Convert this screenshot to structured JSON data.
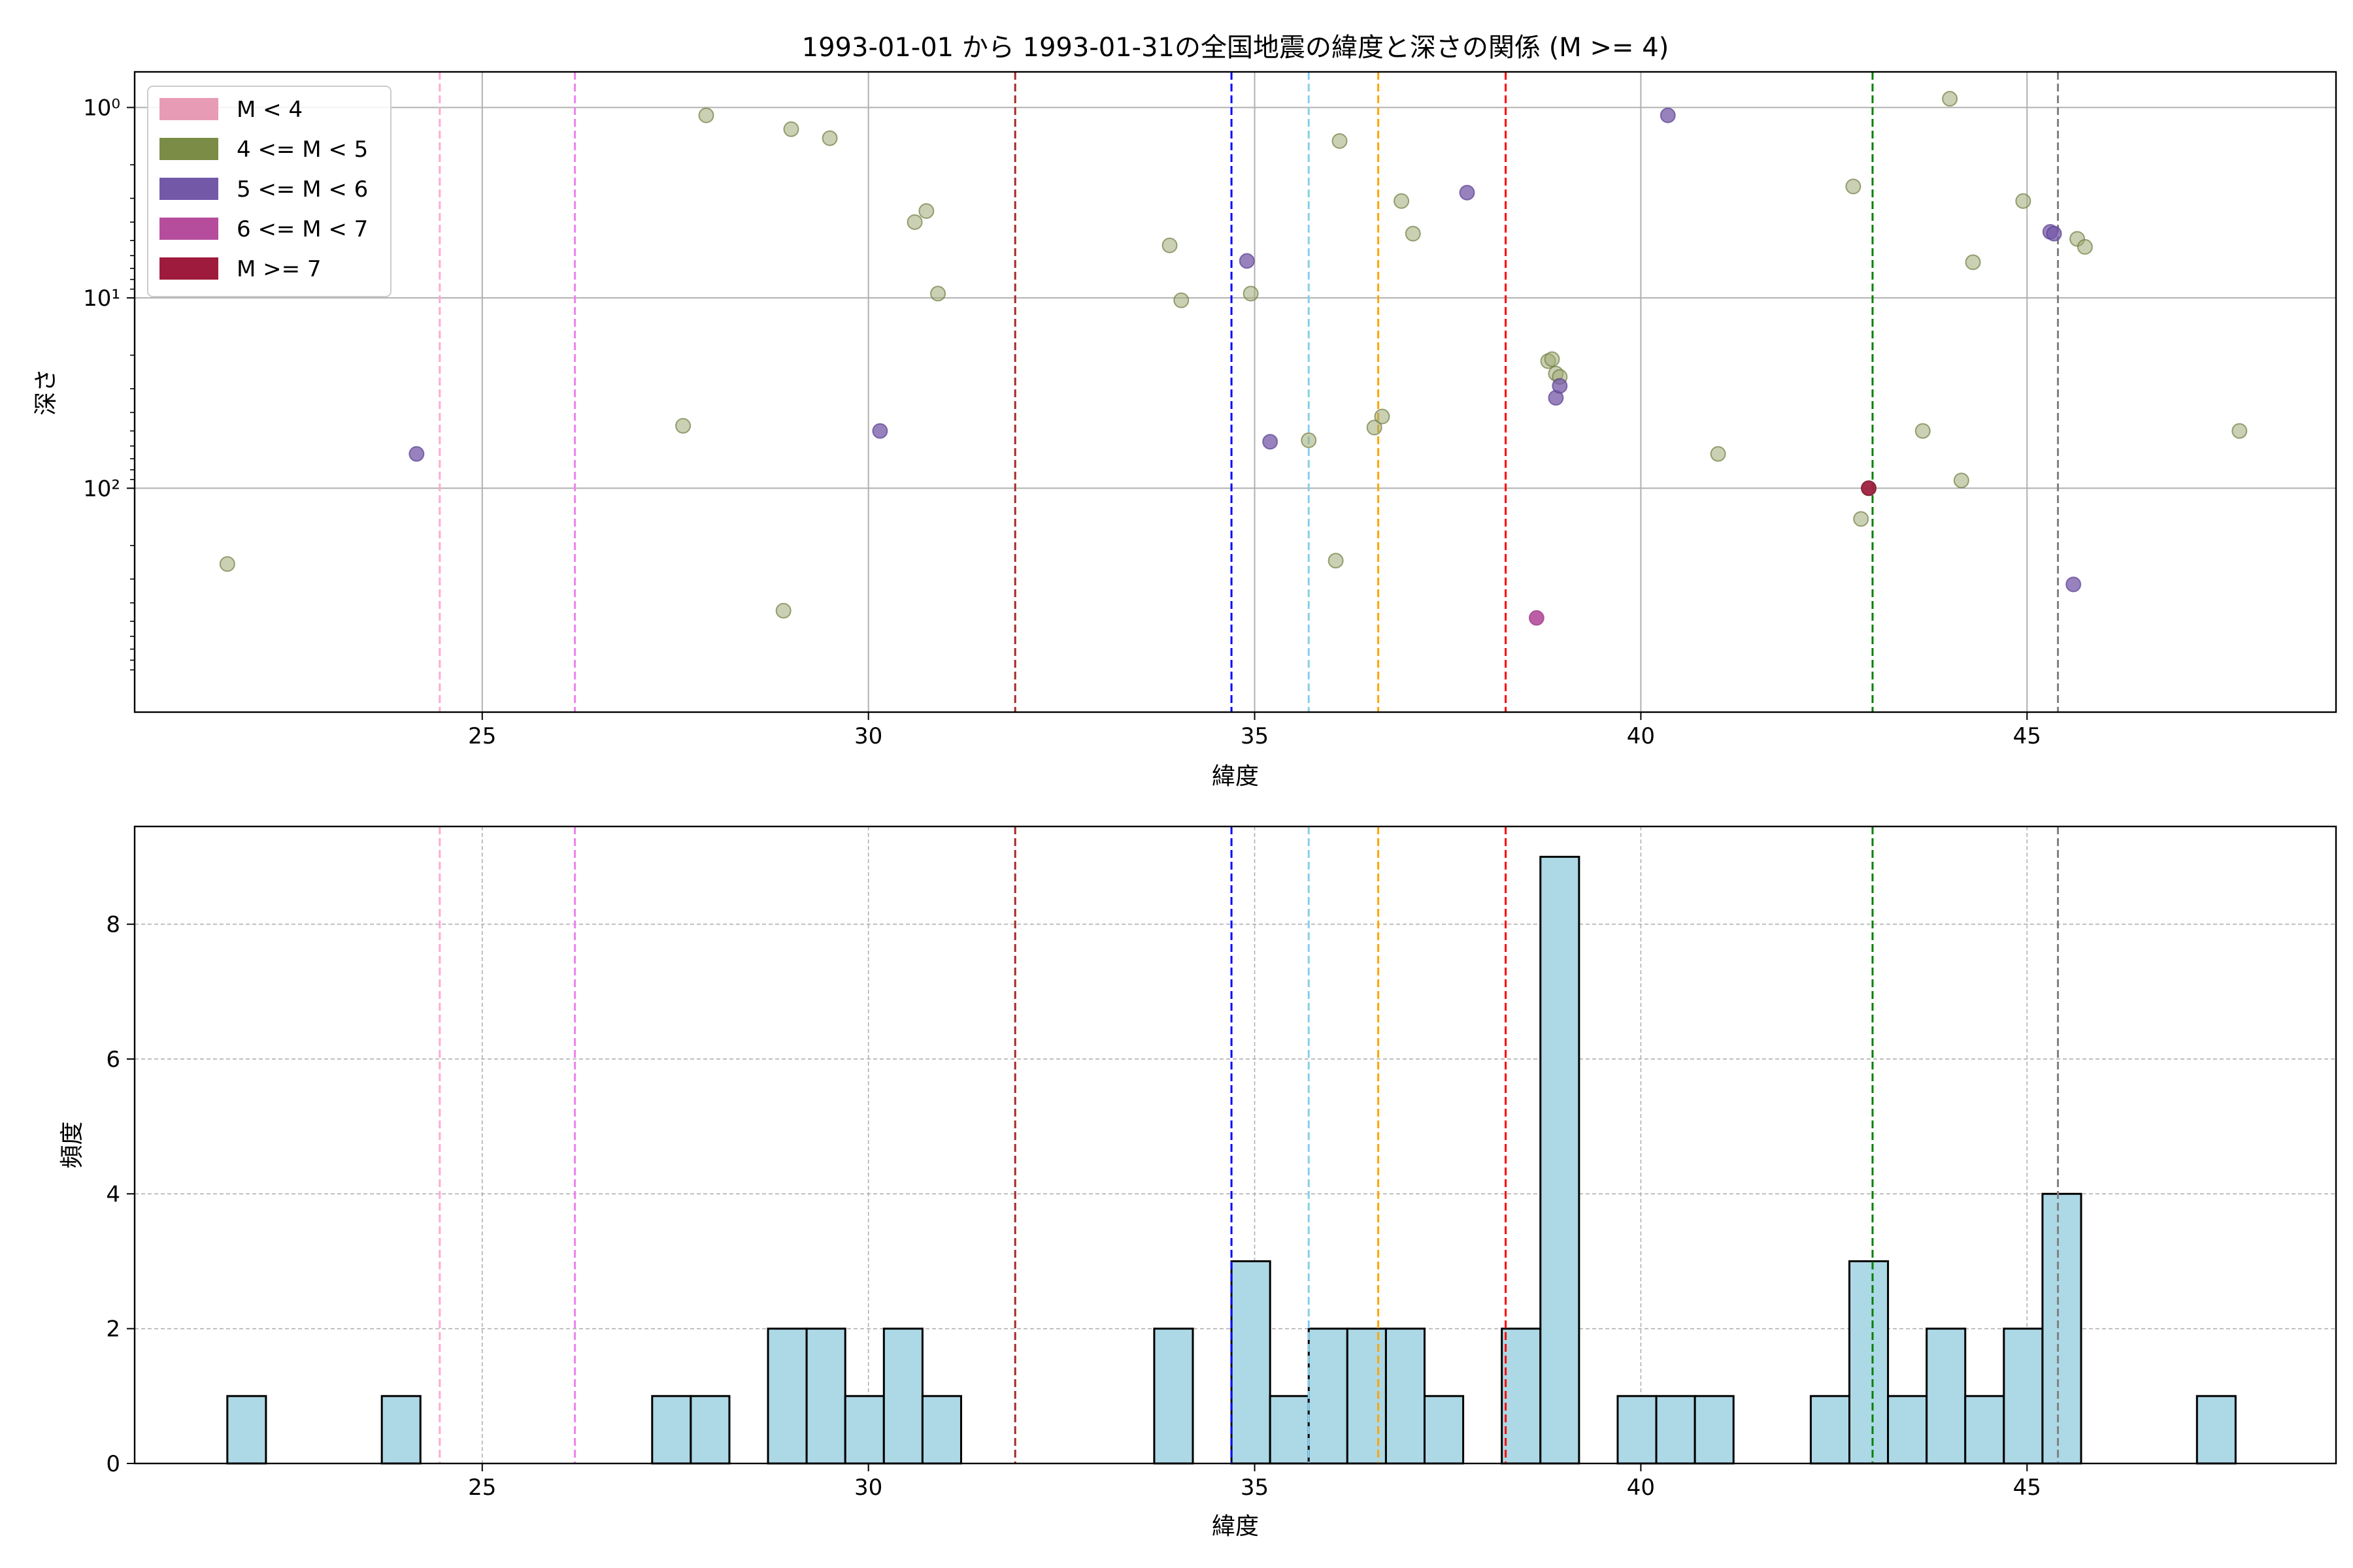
{
  "title": "1993-01-01 から 1993-01-31の全国地震の緯度と深さの関係 (M >= 4)",
  "chart_data": [
    {
      "type": "scatter",
      "xlabel": "緯度",
      "ylabel": "深さ",
      "xlim": [
        20.5,
        49.0
      ],
      "ylim": [
        1500,
        0.65
      ],
      "yscale": "log",
      "y_inverted": true,
      "xticks": [
        25,
        30,
        35,
        40,
        45
      ],
      "xtick_labels": [
        "25",
        "30",
        "35",
        "40",
        "45"
      ],
      "yticks": [
        1,
        10,
        100
      ],
      "ytick_labels": [
        "10⁰",
        "10¹",
        "10²"
      ],
      "grid": true,
      "legend_position": "top-left",
      "legend": [
        {
          "label": "M < 4",
          "color": "#e89bb5"
        },
        {
          "label": "4 <= M < 5",
          "color": "#7a8c45"
        },
        {
          "label": "5 <= M < 6",
          "color": "#7458a8"
        },
        {
          "label": "6 <= M < 7",
          "color": "#b54d9c"
        },
        {
          "label": "M >= 7",
          "color": "#9e1b3d"
        }
      ],
      "vlines": [
        {
          "x": 24.45,
          "color": "#ffaad0"
        },
        {
          "x": 26.2,
          "color": "#ee82ee"
        },
        {
          "x": 31.9,
          "color": "#a52a2a"
        },
        {
          "x": 34.7,
          "color": "#0000ff"
        },
        {
          "x": 35.7,
          "color": "#87ceeb"
        },
        {
          "x": 36.6,
          "color": "#ffa500"
        },
        {
          "x": 38.25,
          "color": "#ff0000"
        },
        {
          "x": 43.0,
          "color": "#008000"
        },
        {
          "x": 45.4,
          "color": "#808080"
        }
      ],
      "points": [
        {
          "x": 21.7,
          "y": 250,
          "m": "4-5"
        },
        {
          "x": 24.15,
          "y": 66,
          "m": "5-6"
        },
        {
          "x": 27.6,
          "y": 47,
          "m": "4-5"
        },
        {
          "x": 27.9,
          "y": 1.1,
          "m": "4-5"
        },
        {
          "x": 28.9,
          "y": 440,
          "m": "4-5"
        },
        {
          "x": 29.0,
          "y": 1.3,
          "m": "4-5"
        },
        {
          "x": 29.5,
          "y": 1.45,
          "m": "4-5"
        },
        {
          "x": 30.15,
          "y": 50,
          "m": "5-6"
        },
        {
          "x": 30.6,
          "y": 4.0,
          "m": "4-5"
        },
        {
          "x": 30.75,
          "y": 3.5,
          "m": "4-5"
        },
        {
          "x": 30.9,
          "y": 9.5,
          "m": "4-5"
        },
        {
          "x": 33.9,
          "y": 5.3,
          "m": "4-5"
        },
        {
          "x": 34.05,
          "y": 10.3,
          "m": "4-5"
        },
        {
          "x": 34.9,
          "y": 6.4,
          "m": "5-6"
        },
        {
          "x": 34.95,
          "y": 9.5,
          "m": "4-5"
        },
        {
          "x": 35.2,
          "y": 57,
          "m": "5-6"
        },
        {
          "x": 35.7,
          "y": 56,
          "m": "4-5"
        },
        {
          "x": 36.05,
          "y": 240,
          "m": "4-5"
        },
        {
          "x": 36.1,
          "y": 1.5,
          "m": "4-5"
        },
        {
          "x": 36.55,
          "y": 48,
          "m": "4-5"
        },
        {
          "x": 36.65,
          "y": 42,
          "m": "4-5"
        },
        {
          "x": 36.9,
          "y": 3.1,
          "m": "4-5"
        },
        {
          "x": 37.05,
          "y": 4.6,
          "m": "4-5"
        },
        {
          "x": 37.75,
          "y": 2.8,
          "m": "5-6"
        },
        {
          "x": 38.8,
          "y": 21.5,
          "m": "4-5"
        },
        {
          "x": 38.85,
          "y": 21,
          "m": "4-5"
        },
        {
          "x": 38.9,
          "y": 25,
          "m": "4-5"
        },
        {
          "x": 38.95,
          "y": 26,
          "m": "4-5"
        },
        {
          "x": 38.9,
          "y": 33.5,
          "m": "5-6"
        },
        {
          "x": 38.95,
          "y": 29,
          "m": "5-6"
        },
        {
          "x": 38.65,
          "y": 480,
          "m": "6-7"
        },
        {
          "x": 40.35,
          "y": 1.1,
          "m": "5-6"
        },
        {
          "x": 41.0,
          "y": 66,
          "m": "4-5"
        },
        {
          "x": 42.75,
          "y": 2.6,
          "m": "4-5"
        },
        {
          "x": 42.85,
          "y": 145,
          "m": "4-5"
        },
        {
          "x": 42.95,
          "y": 100,
          "m": "4-5"
        },
        {
          "x": 42.95,
          "y": 100,
          "m": "7+"
        },
        {
          "x": 43.65,
          "y": 50,
          "m": "4-5"
        },
        {
          "x": 44.0,
          "y": 0.9,
          "m": "4-5"
        },
        {
          "x": 44.15,
          "y": 91,
          "m": "4-5"
        },
        {
          "x": 44.3,
          "y": 6.5,
          "m": "4-5"
        },
        {
          "x": 44.95,
          "y": 3.1,
          "m": "4-5"
        },
        {
          "x": 45.3,
          "y": 4.5,
          "m": "5-6"
        },
        {
          "x": 45.35,
          "y": 4.6,
          "m": "5-6"
        },
        {
          "x": 45.6,
          "y": 320,
          "m": "5-6"
        },
        {
          "x": 45.65,
          "y": 4.9,
          "m": "4-5"
        },
        {
          "x": 45.75,
          "y": 5.4,
          "m": "4-5"
        },
        {
          "x": 47.75,
          "y": 50,
          "m": "4-5"
        }
      ]
    },
    {
      "type": "bar",
      "xlabel": "緯度",
      "ylabel": "頻度",
      "xlim": [
        20.5,
        49.0
      ],
      "ylim": [
        0,
        9.45
      ],
      "xticks": [
        25,
        30,
        35,
        40,
        45
      ],
      "yticks": [
        0,
        2,
        4,
        6,
        8
      ],
      "grid": true,
      "bar_color": "#add8e6",
      "bin_width": 0.5,
      "bins": [
        {
          "x0": 21.7,
          "count": 1
        },
        {
          "x0": 23.7,
          "count": 1
        },
        {
          "x0": 27.2,
          "count": 1
        },
        {
          "x0": 27.7,
          "count": 1
        },
        {
          "x0": 28.7,
          "count": 2
        },
        {
          "x0": 29.2,
          "count": 2
        },
        {
          "x0": 29.7,
          "count": 1
        },
        {
          "x0": 30.2,
          "count": 2
        },
        {
          "x0": 30.7,
          "count": 1
        },
        {
          "x0": 33.7,
          "count": 2
        },
        {
          "x0": 34.7,
          "count": 3
        },
        {
          "x0": 35.2,
          "count": 1
        },
        {
          "x0": 35.7,
          "count": 2
        },
        {
          "x0": 36.2,
          "count": 2
        },
        {
          "x0": 36.7,
          "count": 2
        },
        {
          "x0": 37.2,
          "count": 1
        },
        {
          "x0": 38.2,
          "count": 2
        },
        {
          "x0": 38.7,
          "count": 9
        },
        {
          "x0": 39.7,
          "count": 1
        },
        {
          "x0": 40.2,
          "count": 1
        },
        {
          "x0": 40.7,
          "count": 1
        },
        {
          "x0": 42.2,
          "count": 1
        },
        {
          "x0": 42.7,
          "count": 3
        },
        {
          "x0": 43.2,
          "count": 1
        },
        {
          "x0": 43.7,
          "count": 2
        },
        {
          "x0": 44.2,
          "count": 1
        },
        {
          "x0": 44.7,
          "count": 2
        },
        {
          "x0": 45.2,
          "count": 4
        },
        {
          "x0": 47.2,
          "count": 1
        }
      ],
      "vlines": [
        {
          "x": 24.45,
          "color": "#ffaad0"
        },
        {
          "x": 26.2,
          "color": "#ee82ee"
        },
        {
          "x": 31.9,
          "color": "#a52a2a"
        },
        {
          "x": 34.7,
          "color": "#0000ff"
        },
        {
          "x": 35.7,
          "color": "#87ceeb"
        },
        {
          "x": 36.6,
          "color": "#ffa500"
        },
        {
          "x": 38.25,
          "color": "#ff0000"
        },
        {
          "x": 43.0,
          "color": "#008000"
        },
        {
          "x": 45.4,
          "color": "#808080"
        }
      ]
    }
  ]
}
